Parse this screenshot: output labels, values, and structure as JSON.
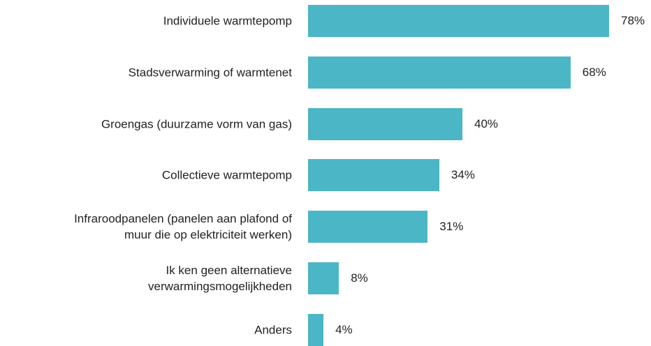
{
  "chart_data": {
    "type": "bar",
    "orientation": "horizontal",
    "categories": [
      "Individuele warmtepomp",
      "Stadsverwarming of warmtenet",
      "Groengas (duurzame vorm van gas)",
      "Collectieve warmtepomp",
      "Infraroodpanelen (panelen aan plafond of\nmuur die op elektriciteit werken)",
      "Ik ken geen alternatieve\nverwarmingsmogelijkheden",
      "Anders"
    ],
    "values": [
      78,
      68,
      40,
      34,
      31,
      8,
      4
    ],
    "value_labels": [
      "78%",
      "68%",
      "40%",
      "34%",
      "31%",
      "8%",
      "4%"
    ],
    "color": "#4bb6c5"
  }
}
